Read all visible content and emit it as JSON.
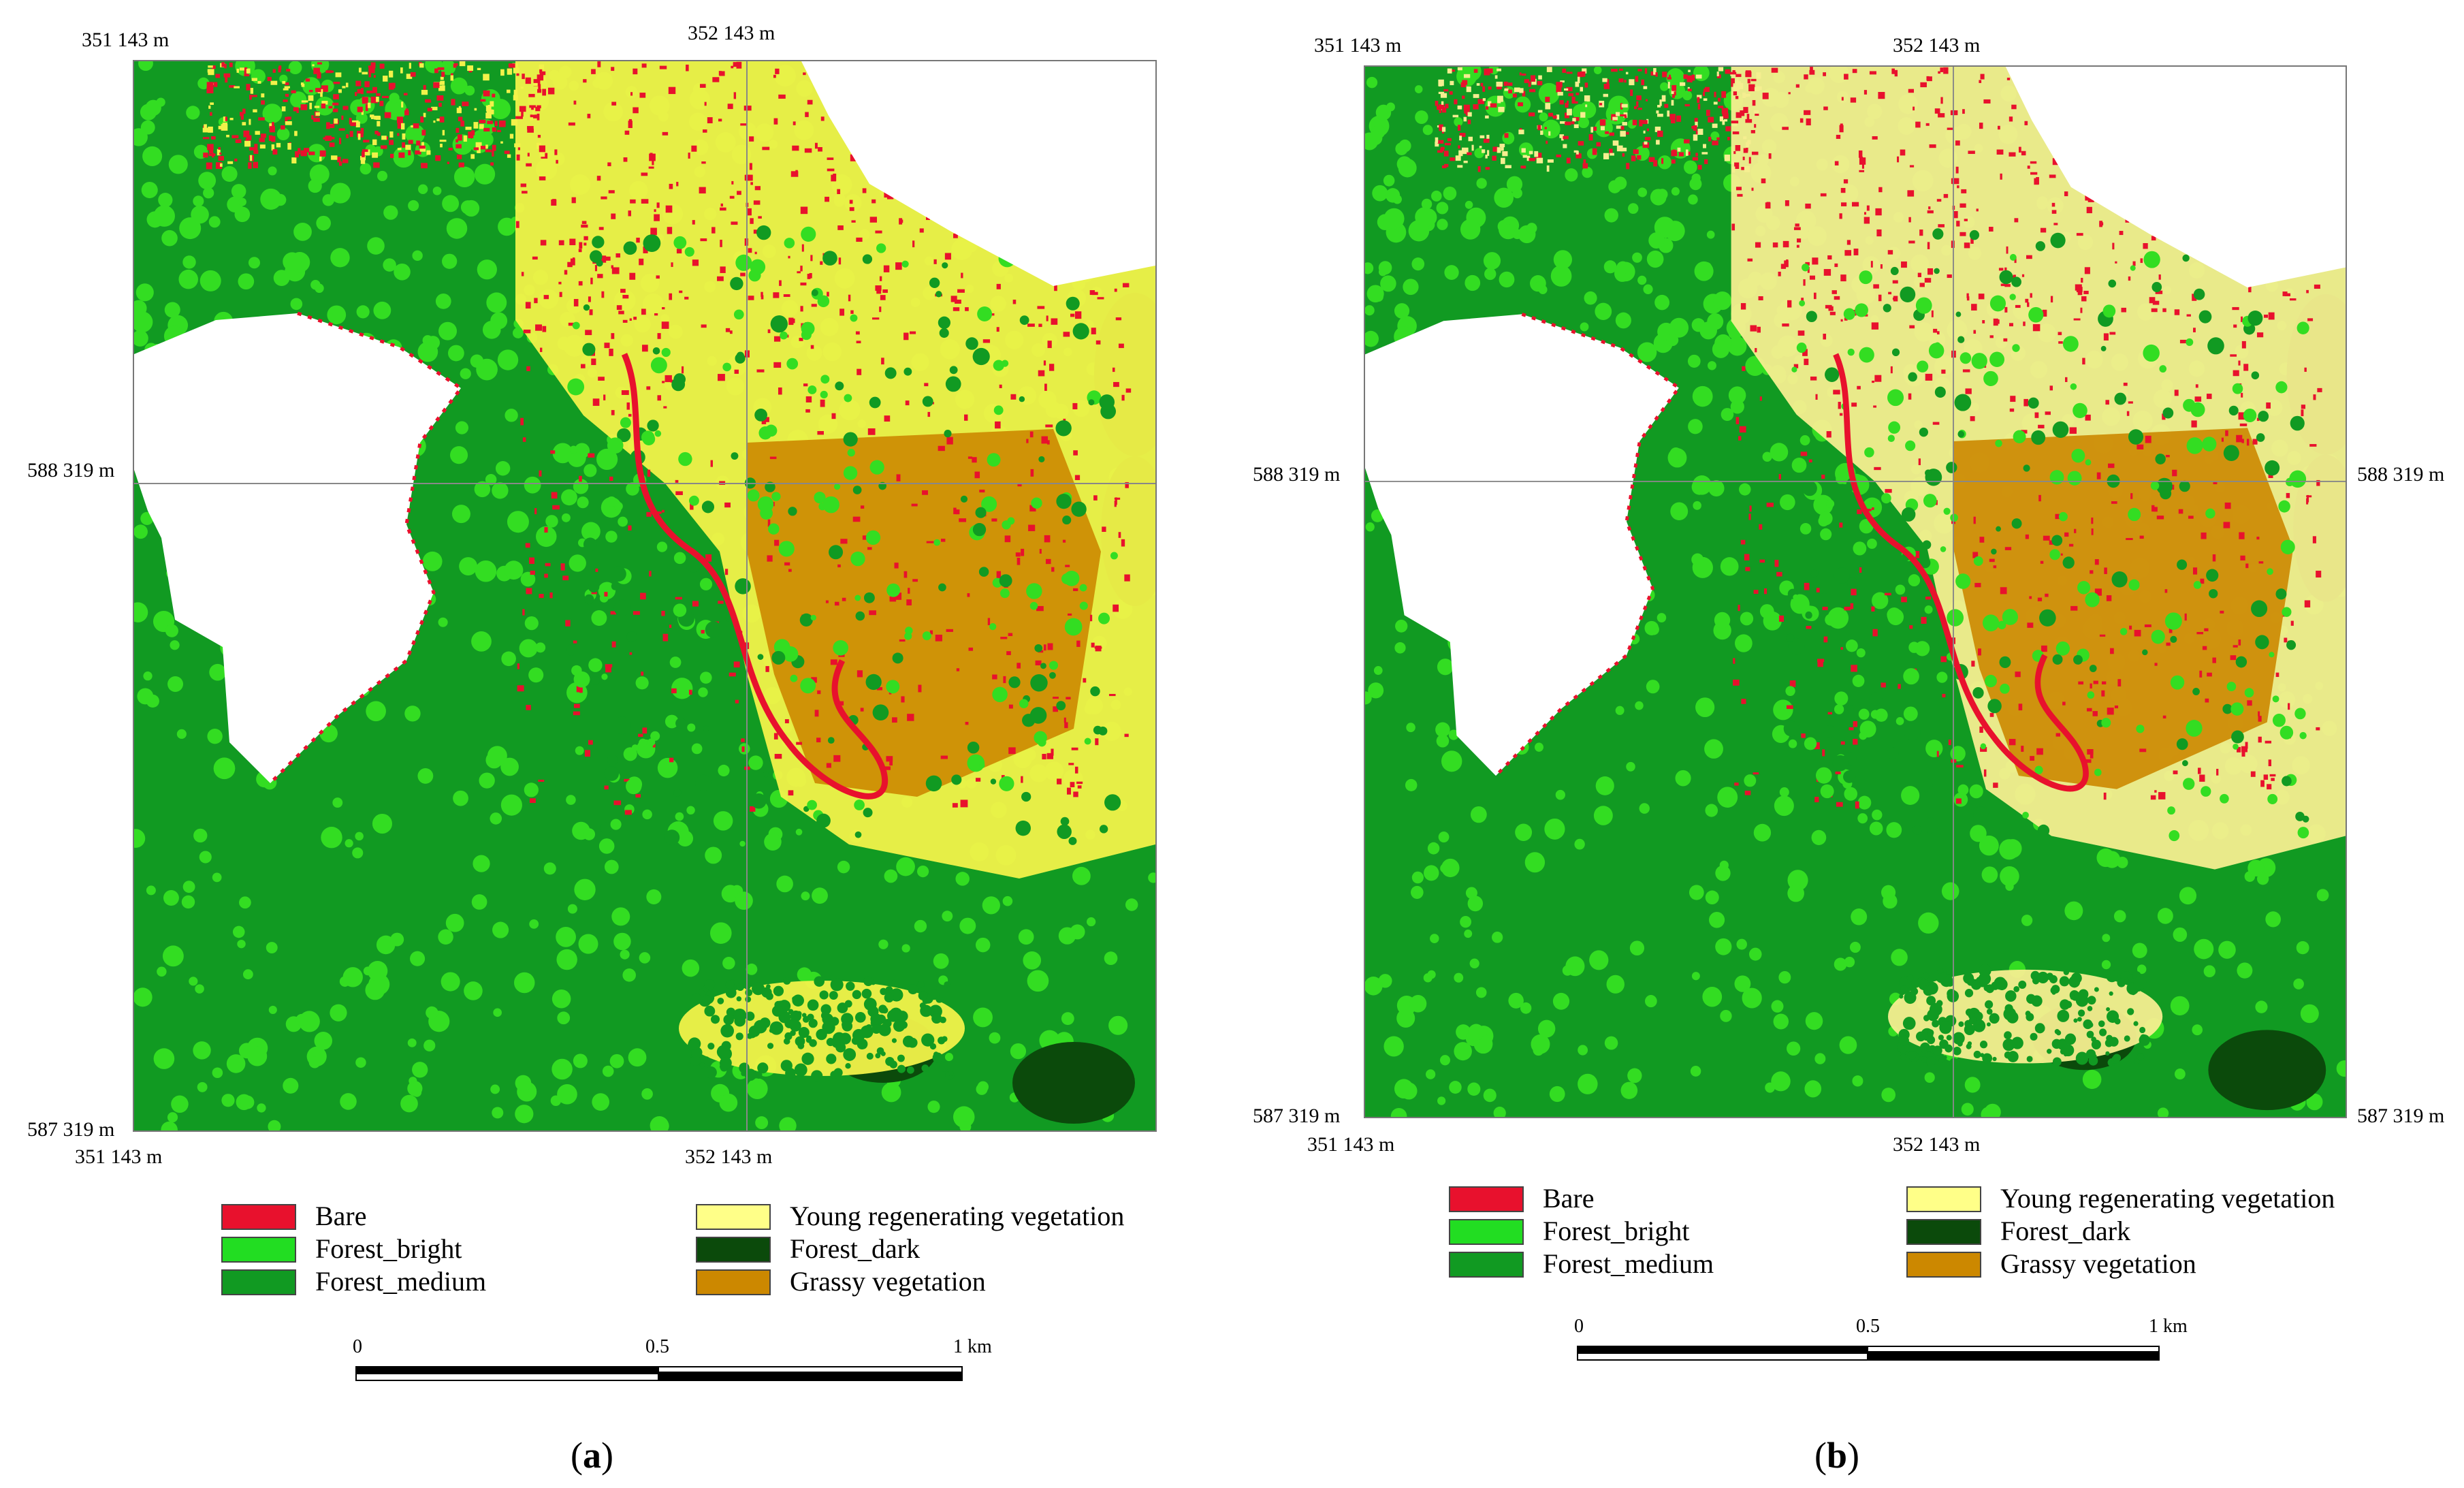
{
  "panels": [
    {
      "id": "a",
      "coords": {
        "top_left": "351 143 m",
        "top_mid": "352 143 m",
        "left_mid": "588 319 m",
        "bottom_left": "587 319 m",
        "bottom_x_left": "351 143 m",
        "bottom_x_mid": "352 143 m"
      },
      "caption_letter": "a"
    },
    {
      "id": "b",
      "coords": {
        "top_left": "351 143 m",
        "top_mid": "352 143 m",
        "left_mid": "588 319 m",
        "right_mid": "588 319 m",
        "bottom_left": "587 319 m",
        "bottom_right": "587 319 m",
        "bottom_x_left": "351 143 m",
        "bottom_x_mid": "352 143 m"
      },
      "caption_letter": "b"
    }
  ],
  "legend": [
    {
      "label": "Bare",
      "color": "#e8112d"
    },
    {
      "label": "Forest_bright",
      "color": "#22dd22"
    },
    {
      "label": "Forest_medium",
      "color": "#119a22"
    },
    {
      "label": "Young regenerating vegetation",
      "color": "#ffff88"
    },
    {
      "label": "Forest_dark",
      "color": "#0b4a0b"
    },
    {
      "label": "Grassy vegetation",
      "color": "#cc8800"
    }
  ],
  "scale": {
    "tick0": "0",
    "tick1": "0.5",
    "tick2": "1 km"
  },
  "map_colors": {
    "bare": "#e8112d",
    "forest_bright": "#33dd22",
    "forest_medium": "#119a22",
    "forest_dark": "#0b4a0b",
    "young_regen": "#f2f24a",
    "young_regen_b": "#f5ee90",
    "grassy": "#cc8800",
    "nodata": "#ffffff",
    "gridline": "#888888"
  }
}
